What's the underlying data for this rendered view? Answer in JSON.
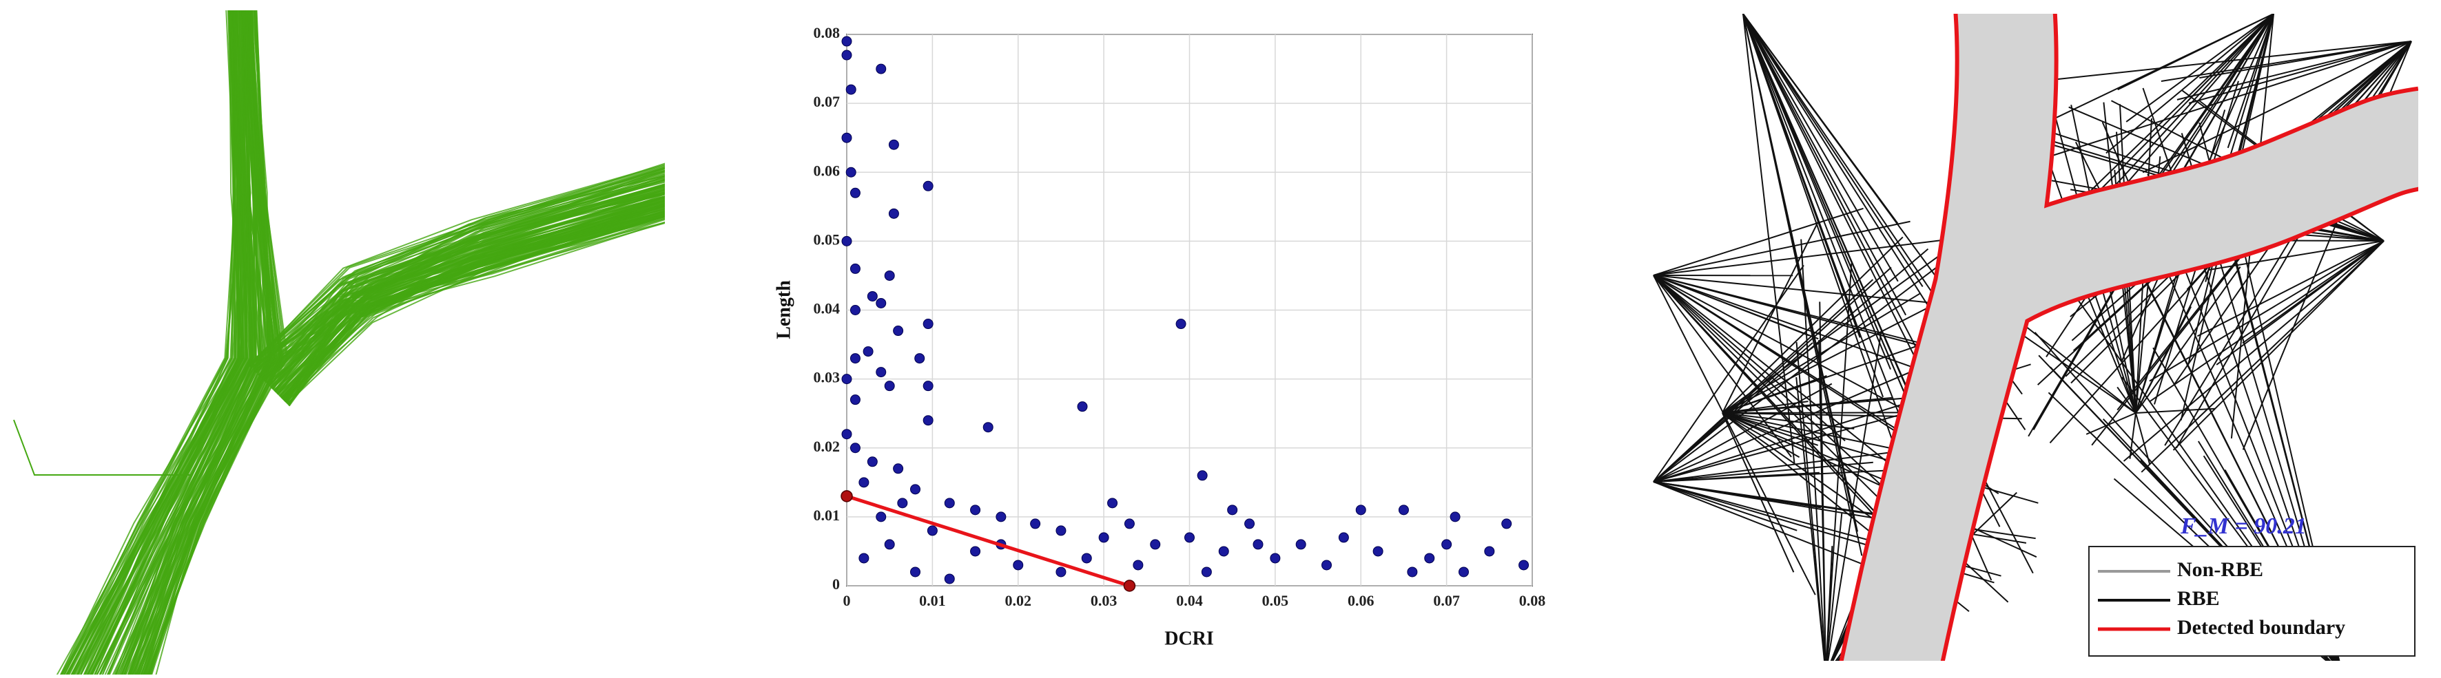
{
  "chart_data": {
    "type": "scatter",
    "xlabel": "DCRI",
    "ylabel": "Length",
    "x": [
      0,
      0,
      0.0005,
      0,
      0.0005,
      0.001,
      0.004,
      0.0055,
      0.0055,
      0.0095,
      0,
      0.001,
      0.001,
      0.005,
      0.003,
      0.004,
      0.006,
      0.0085,
      0.0095,
      0.0025,
      0.001,
      0,
      0.004,
      0.005,
      0.0095,
      0.001,
      0.0095,
      0.0165,
      0.0275,
      0.039,
      0.0415,
      0,
      0.001,
      0.003,
      0.006,
      0.002,
      0.008,
      0.012,
      0.015,
      0.018,
      0.022,
      0.025,
      0.03,
      0.033,
      0.036,
      0.04,
      0.044,
      0.048,
      0.05,
      0.053,
      0.056,
      0.06,
      0.062,
      0.065,
      0.068,
      0.071,
      0.072,
      0.075,
      0.077,
      0.079,
      0.01,
      0.005,
      0.002,
      0.015,
      0.02,
      0.025,
      0.028,
      0.008,
      0.012,
      0.004,
      0.0065,
      0.018,
      0.034,
      0.042,
      0.047,
      0.058,
      0.066,
      0.07,
      0.045,
      0.031
    ],
    "y": [
      0.079,
      0.077,
      0.072,
      0.065,
      0.06,
      0.057,
      0.075,
      0.064,
      0.054,
      0.058,
      0.05,
      0.046,
      0.04,
      0.045,
      0.042,
      0.041,
      0.037,
      0.033,
      0.038,
      0.034,
      0.033,
      0.03,
      0.031,
      0.029,
      0.029,
      0.027,
      0.024,
      0.023,
      0.026,
      0.038,
      0.016,
      0.022,
      0.02,
      0.018,
      0.017,
      0.015,
      0.014,
      0.012,
      0.011,
      0.01,
      0.009,
      0.008,
      0.007,
      0.009,
      0.006,
      0.007,
      0.005,
      0.006,
      0.004,
      0.006,
      0.003,
      0.011,
      0.005,
      0.011,
      0.004,
      0.01,
      0.002,
      0.005,
      0.009,
      0.003,
      0.008,
      0.006,
      0.004,
      0.005,
      0.003,
      0.002,
      0.004,
      0.002,
      0.001,
      0.01,
      0.012,
      0.006,
      0.003,
      0.002,
      0.009,
      0.007,
      0.002,
      0.006,
      0.011,
      0.012
    ],
    "color": "#1a1a9c",
    "fit_line": {
      "x": [
        0,
        0.033
      ],
      "y": [
        0.013,
        0
      ],
      "color": "#e8141a"
    },
    "xlim": [
      0,
      0.08
    ],
    "ylim": [
      0,
      0.08
    ],
    "xticks": [
      0,
      0.01,
      0.02,
      0.03,
      0.04,
      0.05,
      0.06,
      0.07,
      0.08
    ],
    "yticks": [
      0,
      0.01,
      0.02,
      0.03,
      0.04,
      0.05,
      0.06,
      0.07,
      0.08
    ],
    "grid": true
  },
  "right_panel": {
    "annotation": "F_M = 90.21",
    "legend": [
      "Non-RBE",
      "RBE",
      "Detected boundary"
    ]
  }
}
